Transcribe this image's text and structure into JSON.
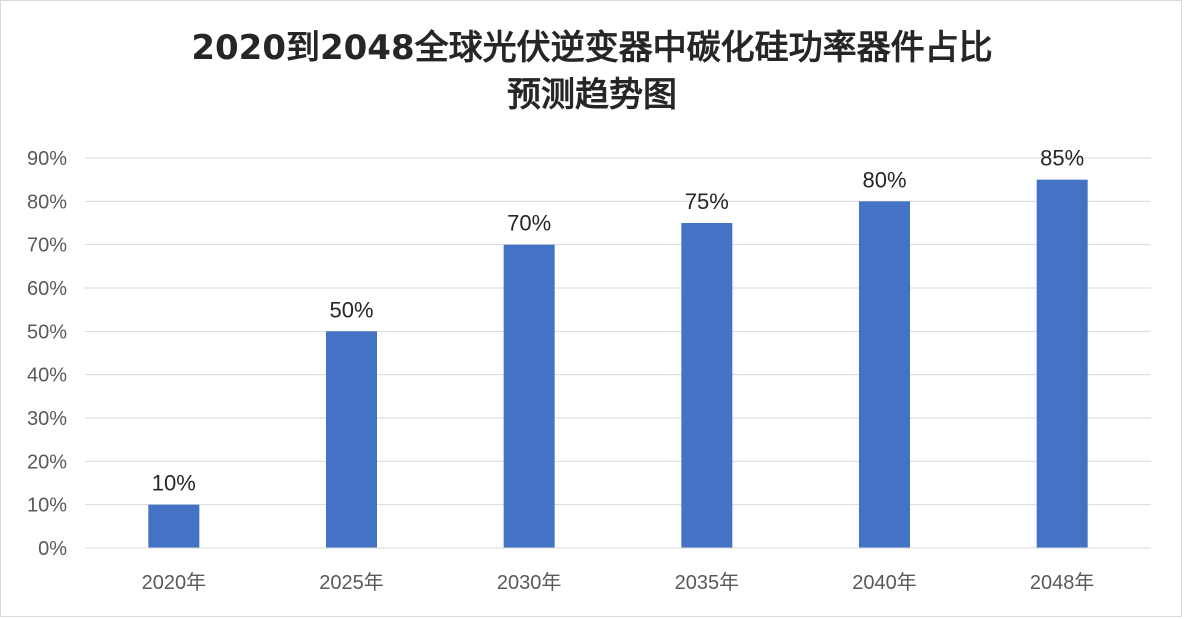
{
  "chart_data": {
    "type": "bar",
    "title": "2020到2048全球光伏逆变器中碳化硅功率器件占比预测趋势图",
    "title_lines": [
      "2020到2048全球光伏逆变器中碳化硅功率器件占比",
      "预测趋势图"
    ],
    "categories": [
      "2020年",
      "2025年",
      "2030年",
      "2035年",
      "2040年",
      "2048年"
    ],
    "values": [
      10,
      50,
      70,
      75,
      80,
      85
    ],
    "data_labels": [
      "10%",
      "50%",
      "70%",
      "75%",
      "80%",
      "85%"
    ],
    "ylim": [
      0,
      90
    ],
    "y_ticks": [
      "0%",
      "10%",
      "20%",
      "30%",
      "40%",
      "50%",
      "60%",
      "70%",
      "80%",
      "90%"
    ],
    "xlabel": "",
    "ylabel": "",
    "grid": true,
    "legend": "none",
    "bar_color": "#4472c4"
  }
}
